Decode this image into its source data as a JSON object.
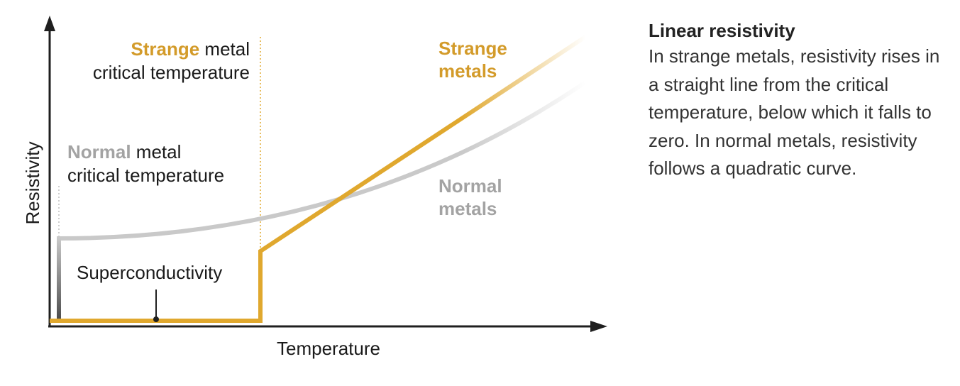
{
  "colors": {
    "strange": "#e0a82e",
    "strange_label": "#d39b2a",
    "normal": "#c9c9c9",
    "normal_label": "#a3a3a3",
    "axis": "#1f1f1f",
    "text": "#1a1a1a"
  },
  "diagram": {
    "x_axis_label": "Temperature",
    "y_axis_label": "Resistivity",
    "strange_tc_label": {
      "highlight": "Strange",
      "rest_line1": " metal",
      "line2": "critical temperature"
    },
    "normal_tc_label": {
      "highlight": "Normal",
      "rest_line1": " metal",
      "line2": "critical temperature"
    },
    "superconductivity_label": "Superconductivity",
    "strange_curve_label": [
      "Strange",
      "metals"
    ],
    "normal_curve_label": [
      "Normal",
      "metals"
    ]
  },
  "side_panel": {
    "title": "Linear resistivity",
    "body": "In strange metals, resistivity rises in a straight line from the critical temperature, below which it falls to zero. In normal metals, resistivity follows a quadratic curve."
  }
}
